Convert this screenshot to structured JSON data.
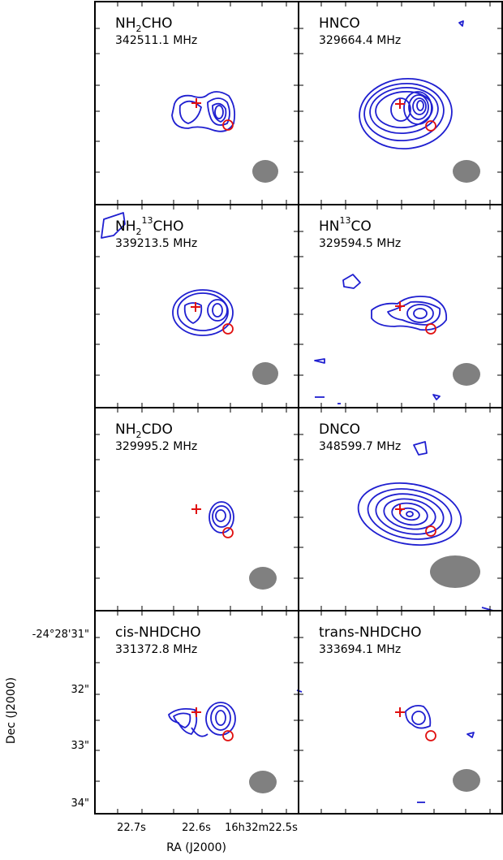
{
  "chart_data": {
    "type": "contour",
    "grid": "2 columns x 4 rows of panels",
    "xlabel": "RA (J2000)",
    "ylabel": "Dec (J2000)",
    "x_tick_labels": [
      "22.7s",
      "22.6s",
      "16h32m22.5s"
    ],
    "y_tick_labels": [
      "-24°28'31\"",
      "32\"",
      "33\"",
      "34\""
    ],
    "contour_color": "#1f1fd0",
    "marker_color": "#e01010",
    "beam_color": "#808080",
    "panels": [
      {
        "species": "NH",
        "sub": "2",
        "sup": "",
        "rest": "CHO",
        "frequency": "342511.1 MHz"
      },
      {
        "species": "HNCO",
        "sub": "",
        "sup": "",
        "rest": "",
        "frequency": "329664.4 MHz"
      },
      {
        "species": "NH",
        "sub": "2",
        "sup": "13",
        "rest": "CHO",
        "frequency": "339213.5 MHz"
      },
      {
        "species": "HN",
        "sub": "",
        "sup": "13",
        "rest": "CO",
        "frequency": "329594.5 MHz"
      },
      {
        "species": "NH",
        "sub": "2",
        "sup": "",
        "rest": "CDO",
        "frequency": "329995.2 MHz"
      },
      {
        "species": "DNCO",
        "sub": "",
        "sup": "",
        "rest": "",
        "frequency": "348599.7 MHz"
      },
      {
        "species": "cis-NHDCHO",
        "sub": "",
        "sup": "",
        "rest": "",
        "frequency": "331372.8 MHz"
      },
      {
        "species": "trans-NHDCHO",
        "sub": "",
        "sup": "",
        "rest": "",
        "frequency": "333694.1 MHz"
      }
    ]
  }
}
